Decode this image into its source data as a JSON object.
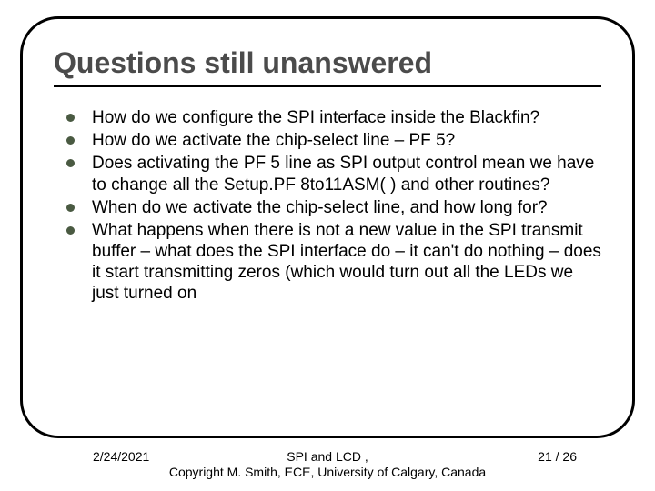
{
  "title": "Questions still unanswered",
  "bullets": [
    "How do we configure the SPI interface inside the Blackfin?",
    "How do we activate the chip-select line – PF 5?",
    "Does activating the PF 5 line as SPI output control mean we have to change all the Setup.PF 8to11ASM( ) and other routines?",
    "When do we activate the chip-select line, and how long for?",
    "What happens when there is not a new value in the SPI transmit buffer – what does the SPI interface do – it can't do nothing – does it start transmitting zeros (which would turn out all the LEDs we just turned on"
  ],
  "footer": {
    "date": "2/24/2021",
    "center_line1": "SPI and LCD                               ,",
    "center_line2": "Copyright M. Smith, ECE, University of Calgary, Canada",
    "page": "21 / 26"
  },
  "colors": {
    "title_color": "#4b4b4b",
    "bullet_color": "#4a5a42",
    "text_color": "#000000",
    "border_color": "#000000",
    "background": "#ffffff"
  }
}
